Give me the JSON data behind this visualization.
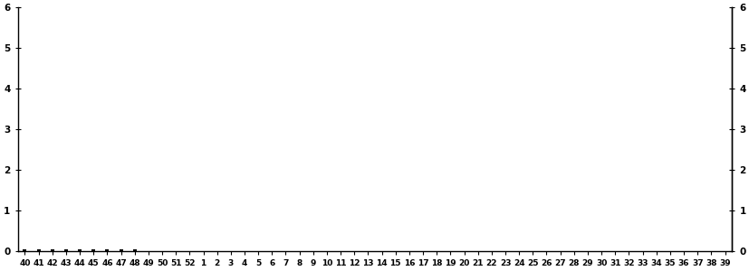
{
  "x_labels": [
    "40",
    "41",
    "42",
    "43",
    "44",
    "45",
    "46",
    "47",
    "48",
    "49",
    "50",
    "51",
    "52",
    "1",
    "2",
    "3",
    "4",
    "5",
    "6",
    "7",
    "8",
    "9",
    "10",
    "11",
    "12",
    "13",
    "14",
    "15",
    "16",
    "17",
    "18",
    "19",
    "20",
    "21",
    "22",
    "23",
    "24",
    "25",
    "26",
    "27",
    "28",
    "29",
    "30",
    "31",
    "32",
    "33",
    "34",
    "35",
    "36",
    "37",
    "38",
    "39"
  ],
  "ylim": [
    0,
    6
  ],
  "yticks": [
    0,
    1,
    2,
    3,
    4,
    5,
    6
  ],
  "data_x": [
    0,
    1,
    2,
    3,
    3,
    4,
    4,
    5,
    5,
    6,
    7,
    7,
    8
  ],
  "data_y": [
    0,
    0,
    0,
    0,
    0,
    0,
    0,
    0,
    0,
    0,
    0,
    0,
    0
  ],
  "marker_color": "#000000",
  "spine_color": "#000000",
  "axis_color": "#000000",
  "tick_label_color": "#cc6600",
  "background_color": "#ffffff",
  "figsize": [
    8.28,
    3.0
  ],
  "dpi": 100
}
